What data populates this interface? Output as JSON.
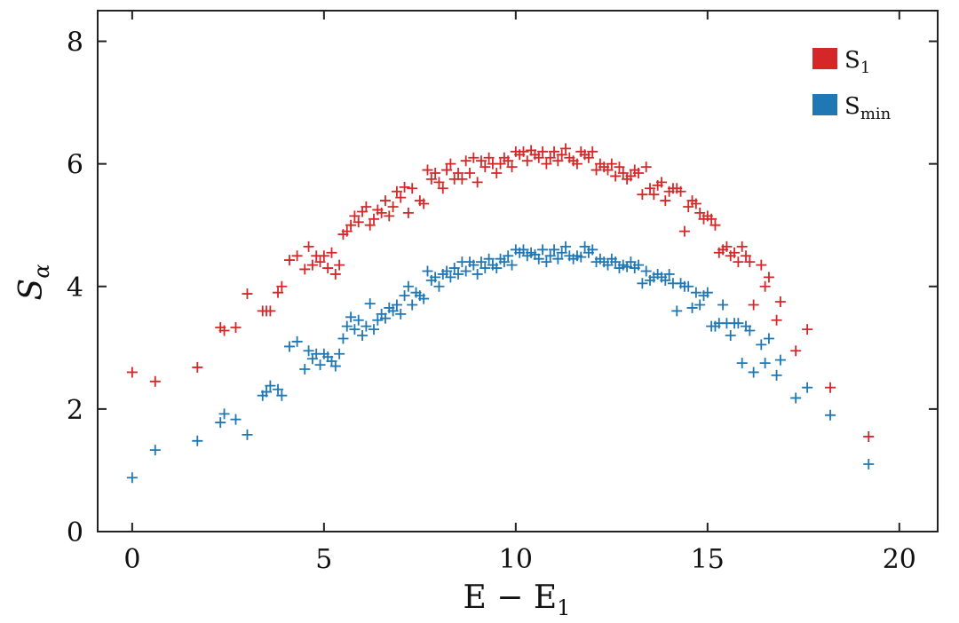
{
  "chart_data": {
    "type": "scatter",
    "marker": "plus",
    "xlabel_main": "E − E",
    "xlabel_sub": "1",
    "ylabel_main": "S",
    "ylabel_sub": "α",
    "xlim": [
      -0.9,
      21
    ],
    "ylim": [
      0,
      8.5
    ],
    "xticks": [
      0,
      5,
      10,
      15,
      20
    ],
    "yticks": [
      0,
      2,
      4,
      6,
      8
    ],
    "legend_position": "top-right",
    "series": [
      {
        "name_main": "S",
        "name_sub": "1",
        "color": "#d62728",
        "points": [
          [
            0.0,
            2.6
          ],
          [
            0.6,
            2.45
          ],
          [
            1.7,
            2.68
          ],
          [
            2.3,
            3.33
          ],
          [
            2.4,
            3.28
          ],
          [
            2.7,
            3.33
          ],
          [
            3.0,
            3.88
          ],
          [
            3.4,
            3.6
          ],
          [
            3.5,
            3.6
          ],
          [
            3.6,
            3.6
          ],
          [
            3.8,
            3.9
          ],
          [
            3.9,
            4.0
          ],
          [
            4.1,
            4.43
          ],
          [
            4.3,
            4.5
          ],
          [
            4.5,
            4.28
          ],
          [
            4.6,
            4.65
          ],
          [
            4.7,
            4.35
          ],
          [
            4.8,
            4.5
          ],
          [
            4.9,
            4.4
          ],
          [
            5.0,
            4.5
          ],
          [
            5.1,
            4.3
          ],
          [
            5.2,
            4.55
          ],
          [
            5.3,
            4.2
          ],
          [
            5.4,
            4.35
          ],
          [
            5.5,
            4.85
          ],
          [
            5.6,
            4.9
          ],
          [
            5.7,
            5.0
          ],
          [
            5.8,
            5.15
          ],
          [
            5.9,
            5.05
          ],
          [
            6.0,
            5.22
          ],
          [
            6.1,
            5.3
          ],
          [
            6.2,
            5.0
          ],
          [
            6.3,
            5.1
          ],
          [
            6.4,
            5.25
          ],
          [
            6.5,
            5.2
          ],
          [
            6.6,
            5.4
          ],
          [
            6.7,
            5.15
          ],
          [
            6.8,
            5.3
          ],
          [
            6.9,
            5.55
          ],
          [
            7.0,
            5.45
          ],
          [
            7.1,
            5.62
          ],
          [
            7.2,
            5.2
          ],
          [
            7.3,
            5.6
          ],
          [
            7.5,
            5.4
          ],
          [
            7.6,
            5.35
          ],
          [
            7.7,
            5.9
          ],
          [
            7.8,
            5.75
          ],
          [
            7.9,
            5.85
          ],
          [
            8.0,
            5.7
          ],
          [
            8.1,
            5.6
          ],
          [
            8.2,
            5.9
          ],
          [
            8.3,
            6.0
          ],
          [
            8.4,
            5.75
          ],
          [
            8.5,
            5.85
          ],
          [
            8.6,
            5.75
          ],
          [
            8.7,
            6.05
          ],
          [
            8.8,
            5.85
          ],
          [
            8.9,
            6.1
          ],
          [
            9.0,
            5.7
          ],
          [
            9.1,
            6.05
          ],
          [
            9.2,
            5.95
          ],
          [
            9.3,
            6.1
          ],
          [
            9.4,
            6.0
          ],
          [
            9.5,
            5.85
          ],
          [
            9.6,
            6.0
          ],
          [
            9.7,
            6.1
          ],
          [
            9.8,
            6.05
          ],
          [
            9.9,
            5.95
          ],
          [
            10.0,
            6.2
          ],
          [
            10.1,
            6.15
          ],
          [
            10.2,
            6.2
          ],
          [
            10.3,
            6.05
          ],
          [
            10.4,
            6.22
          ],
          [
            10.5,
            6.15
          ],
          [
            10.6,
            6.1
          ],
          [
            10.7,
            6.2
          ],
          [
            10.8,
            6.0
          ],
          [
            10.9,
            6.1
          ],
          [
            11.0,
            6.2
          ],
          [
            11.1,
            6.05
          ],
          [
            11.2,
            6.15
          ],
          [
            11.3,
            6.25
          ],
          [
            11.4,
            6.1
          ],
          [
            11.5,
            6.05
          ],
          [
            11.6,
            6.0
          ],
          [
            11.7,
            6.2
          ],
          [
            11.8,
            6.15
          ],
          [
            11.9,
            6.1
          ],
          [
            12.0,
            6.2
          ],
          [
            12.1,
            5.9
          ],
          [
            12.2,
            6.0
          ],
          [
            12.3,
            5.95
          ],
          [
            12.4,
            5.9
          ],
          [
            12.5,
            6.0
          ],
          [
            12.6,
            5.8
          ],
          [
            12.7,
            5.95
          ],
          [
            12.8,
            5.85
          ],
          [
            12.9,
            5.75
          ],
          [
            13.0,
            5.8
          ],
          [
            13.1,
            5.9
          ],
          [
            13.2,
            5.85
          ],
          [
            13.3,
            5.5
          ],
          [
            13.4,
            5.95
          ],
          [
            13.5,
            5.6
          ],
          [
            13.6,
            5.5
          ],
          [
            13.7,
            5.65
          ],
          [
            13.8,
            5.7
          ],
          [
            13.9,
            5.4
          ],
          [
            14.0,
            5.55
          ],
          [
            14.1,
            5.6
          ],
          [
            14.2,
            5.6
          ],
          [
            14.3,
            5.55
          ],
          [
            14.4,
            4.9
          ],
          [
            14.5,
            5.3
          ],
          [
            14.6,
            5.4
          ],
          [
            14.7,
            5.35
          ],
          [
            14.8,
            5.2
          ],
          [
            14.9,
            5.1
          ],
          [
            15.0,
            5.15
          ],
          [
            15.1,
            5.1
          ],
          [
            15.2,
            5.0
          ],
          [
            15.3,
            4.55
          ],
          [
            15.4,
            4.6
          ],
          [
            15.5,
            4.65
          ],
          [
            15.6,
            4.5
          ],
          [
            15.7,
            4.55
          ],
          [
            15.8,
            4.4
          ],
          [
            15.9,
            4.65
          ],
          [
            16.0,
            4.5
          ],
          [
            16.1,
            4.4
          ],
          [
            16.2,
            3.7
          ],
          [
            16.4,
            4.35
          ],
          [
            16.5,
            4.0
          ],
          [
            16.6,
            4.15
          ],
          [
            16.8,
            3.45
          ],
          [
            16.9,
            3.75
          ],
          [
            17.3,
            2.95
          ],
          [
            17.6,
            3.3
          ],
          [
            18.2,
            2.35
          ],
          [
            19.2,
            1.55
          ]
        ]
      },
      {
        "name_main": "S",
        "name_sub": "min",
        "color": "#1f77b4",
        "points": [
          [
            0.0,
            0.88
          ],
          [
            0.6,
            1.33
          ],
          [
            1.7,
            1.48
          ],
          [
            2.3,
            1.78
          ],
          [
            2.4,
            1.92
          ],
          [
            2.7,
            1.83
          ],
          [
            3.0,
            1.58
          ],
          [
            3.4,
            2.22
          ],
          [
            3.5,
            2.28
          ],
          [
            3.6,
            2.38
          ],
          [
            3.8,
            2.32
          ],
          [
            3.9,
            2.22
          ],
          [
            4.1,
            3.02
          ],
          [
            4.3,
            3.1
          ],
          [
            4.5,
            2.65
          ],
          [
            4.6,
            2.95
          ],
          [
            4.7,
            2.82
          ],
          [
            4.8,
            2.9
          ],
          [
            4.9,
            2.72
          ],
          [
            5.0,
            2.9
          ],
          [
            5.1,
            2.85
          ],
          [
            5.2,
            2.78
          ],
          [
            5.3,
            2.7
          ],
          [
            5.4,
            2.9
          ],
          [
            5.5,
            3.15
          ],
          [
            5.6,
            3.35
          ],
          [
            5.7,
            3.5
          ],
          [
            5.8,
            3.3
          ],
          [
            5.9,
            3.45
          ],
          [
            6.0,
            3.2
          ],
          [
            6.1,
            3.35
          ],
          [
            6.2,
            3.72
          ],
          [
            6.3,
            3.3
          ],
          [
            6.4,
            3.45
          ],
          [
            6.5,
            3.55
          ],
          [
            6.6,
            3.48
          ],
          [
            6.7,
            3.65
          ],
          [
            6.8,
            3.6
          ],
          [
            6.9,
            3.7
          ],
          [
            7.0,
            3.55
          ],
          [
            7.1,
            3.85
          ],
          [
            7.2,
            4.0
          ],
          [
            7.3,
            3.7
          ],
          [
            7.4,
            3.9
          ],
          [
            7.5,
            3.85
          ],
          [
            7.6,
            3.8
          ],
          [
            7.7,
            4.25
          ],
          [
            7.8,
            4.1
          ],
          [
            7.9,
            4.15
          ],
          [
            8.0,
            4.0
          ],
          [
            8.1,
            4.2
          ],
          [
            8.2,
            4.25
          ],
          [
            8.3,
            4.15
          ],
          [
            8.4,
            4.3
          ],
          [
            8.5,
            4.2
          ],
          [
            8.6,
            4.4
          ],
          [
            8.7,
            4.25
          ],
          [
            8.8,
            4.4
          ],
          [
            8.9,
            4.35
          ],
          [
            9.0,
            4.2
          ],
          [
            9.1,
            4.4
          ],
          [
            9.2,
            4.3
          ],
          [
            9.3,
            4.45
          ],
          [
            9.4,
            4.35
          ],
          [
            9.5,
            4.3
          ],
          [
            9.6,
            4.45
          ],
          [
            9.7,
            4.4
          ],
          [
            9.8,
            4.5
          ],
          [
            9.9,
            4.35
          ],
          [
            10.0,
            4.6
          ],
          [
            10.1,
            4.55
          ],
          [
            10.2,
            4.6
          ],
          [
            10.3,
            4.5
          ],
          [
            10.4,
            4.55
          ],
          [
            10.5,
            4.52
          ],
          [
            10.6,
            4.45
          ],
          [
            10.7,
            4.6
          ],
          [
            10.8,
            4.4
          ],
          [
            10.9,
            4.5
          ],
          [
            11.0,
            4.6
          ],
          [
            11.1,
            4.45
          ],
          [
            11.2,
            4.55
          ],
          [
            11.3,
            4.65
          ],
          [
            11.4,
            4.5
          ],
          [
            11.5,
            4.45
          ],
          [
            11.6,
            4.5
          ],
          [
            11.7,
            4.48
          ],
          [
            11.8,
            4.65
          ],
          [
            11.9,
            4.55
          ],
          [
            12.0,
            4.6
          ],
          [
            12.1,
            4.4
          ],
          [
            12.2,
            4.45
          ],
          [
            12.3,
            4.4
          ],
          [
            12.4,
            4.35
          ],
          [
            12.5,
            4.45
          ],
          [
            12.6,
            4.4
          ],
          [
            12.7,
            4.3
          ],
          [
            12.8,
            4.35
          ],
          [
            12.9,
            4.32
          ],
          [
            13.0,
            4.4
          ],
          [
            13.1,
            4.3
          ],
          [
            13.2,
            4.35
          ],
          [
            13.3,
            4.05
          ],
          [
            13.4,
            4.25
          ],
          [
            13.5,
            4.1
          ],
          [
            13.6,
            4.15
          ],
          [
            13.7,
            4.2
          ],
          [
            13.8,
            4.15
          ],
          [
            13.9,
            4.1
          ],
          [
            14.0,
            4.2
          ],
          [
            14.1,
            4.05
          ],
          [
            14.2,
            3.6
          ],
          [
            14.3,
            4.05
          ],
          [
            14.4,
            4.0
          ],
          [
            14.5,
            4.0
          ],
          [
            14.6,
            3.65
          ],
          [
            14.7,
            3.9
          ],
          [
            14.8,
            3.7
          ],
          [
            14.9,
            3.85
          ],
          [
            15.0,
            3.9
          ],
          [
            15.1,
            3.35
          ],
          [
            15.2,
            3.35
          ],
          [
            15.3,
            3.4
          ],
          [
            15.4,
            3.7
          ],
          [
            15.5,
            3.4
          ],
          [
            15.6,
            3.2
          ],
          [
            15.7,
            3.4
          ],
          [
            15.8,
            3.4
          ],
          [
            15.9,
            2.75
          ],
          [
            16.0,
            3.35
          ],
          [
            16.1,
            3.28
          ],
          [
            16.2,
            2.6
          ],
          [
            16.4,
            3.05
          ],
          [
            16.5,
            2.75
          ],
          [
            16.6,
            3.15
          ],
          [
            16.8,
            2.55
          ],
          [
            16.9,
            2.8
          ],
          [
            17.3,
            2.18
          ],
          [
            17.6,
            2.35
          ],
          [
            18.2,
            1.9
          ],
          [
            19.2,
            1.1
          ]
        ]
      }
    ]
  }
}
